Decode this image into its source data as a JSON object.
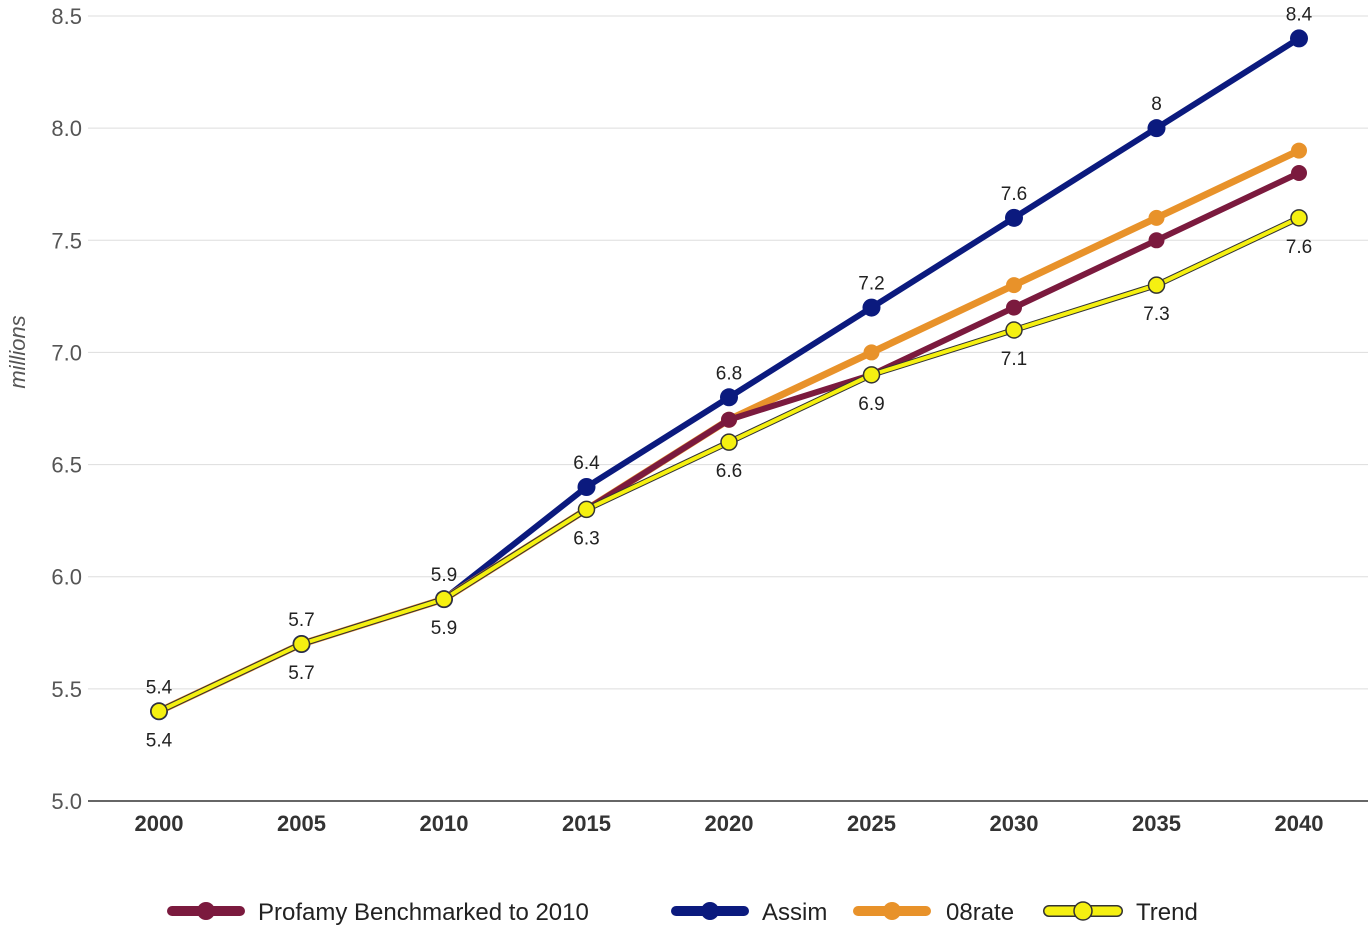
{
  "chart_data": {
    "type": "line",
    "title": "",
    "xlabel": "",
    "ylabel": "millions",
    "x": [
      2000,
      2005,
      2010,
      2015,
      2020,
      2025,
      2030,
      2035,
      2040
    ],
    "ylim": [
      5.0,
      8.5
    ],
    "yticks": [
      "5.0",
      "5.5",
      "6.0",
      "6.5",
      "7.0",
      "7.5",
      "8.0",
      "8.5"
    ],
    "grid": true,
    "legend_position": "bottom",
    "series": [
      {
        "name": "Profamy Benchmarked to 2010",
        "color": "#7b1a3e",
        "values": [
          5.4,
          5.7,
          5.9,
          6.3,
          6.7,
          6.9,
          7.2,
          7.5,
          7.8
        ]
      },
      {
        "name": "Assim",
        "color": "#0b1a7e",
        "values": [
          5.4,
          5.7,
          5.9,
          6.4,
          6.8,
          7.2,
          7.6,
          8.0,
          8.4
        ]
      },
      {
        "name": "08rate",
        "color": "#e8922a",
        "values": [
          5.4,
          5.7,
          5.9,
          6.3,
          6.7,
          7.0,
          7.3,
          7.6,
          7.9
        ]
      },
      {
        "name": "Trend",
        "color": "#f5f011",
        "values": [
          5.4,
          5.7,
          5.9,
          6.3,
          6.6,
          6.9,
          7.1,
          7.3,
          7.6
        ]
      }
    ],
    "annotations": {
      "above": [
        "5.4",
        "5.7",
        "5.9",
        "6.4",
        "6.8",
        "7.2",
        "7.6",
        "8",
        "8.4"
      ],
      "below": [
        "5.4",
        "5.7",
        "5.9",
        "6.3",
        "6.6",
        "6.9",
        "7.1",
        "7.3",
        "7.6"
      ]
    }
  }
}
